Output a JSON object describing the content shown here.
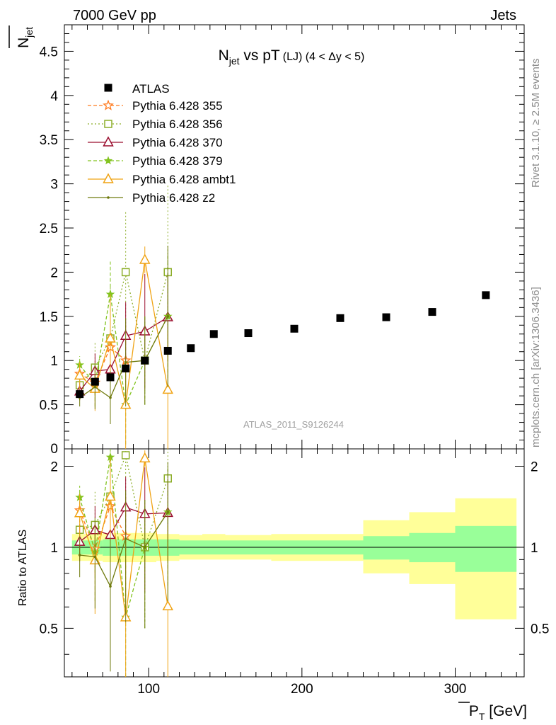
{
  "header": {
    "left": "7000 GeV pp",
    "right": "Jets"
  },
  "side_labels": {
    "rivet": "Rivet 3.1.10, ≥ 2.5M events",
    "mcplots": "mcplots.cern.ch [arXiv:1306.3436]"
  },
  "chart_data": {
    "type": "scatter",
    "title_parts": {
      "main": "N",
      "sub": "jet",
      "rest": " vs pT",
      "small": "(LJ) (4 < Δy < 5)"
    },
    "watermark": "ATLAS_2011_S9126244",
    "xlabel": "P_T [GeV]",
    "xlabel_parts": {
      "p": "P",
      "sub": "T",
      "unit": " [GeV]"
    },
    "ylabel_parts": {
      "n": "N",
      "sub": "jet"
    },
    "ratio_ylabel": "Ratio to ATLAS",
    "xlim": [
      45,
      345
    ],
    "ylim": [
      0,
      4.8
    ],
    "ratio_ylim": [
      0.33,
      2.32
    ],
    "ratio_log": true,
    "x_ticks": [
      100,
      200,
      300
    ],
    "y_ticks": [
      0.5,
      1,
      1.5,
      2,
      2.5,
      3,
      3.5,
      4,
      4.5
    ],
    "y_tick_labels": [
      "0.5",
      "1",
      "1.5",
      "2",
      "2.5",
      "3",
      "3.5",
      "4",
      "4.5"
    ],
    "y_zero_label": "0",
    "ratio_ticks": [
      0.5,
      1,
      2
    ],
    "ratio_tick_labels": [
      "0.5",
      "1",
      "2"
    ],
    "legend_position": "top-left",
    "data": {
      "name": "ATLAS",
      "x": [
        55,
        65,
        75,
        85,
        97.5,
        112.5,
        127.5,
        142.5,
        165,
        195,
        225,
        255,
        285,
        320
      ],
      "y": [
        0.62,
        0.76,
        0.81,
        0.91,
        1.0,
        1.11,
        1.14,
        1.3,
        1.31,
        1.36,
        1.48,
        1.49,
        1.55,
        1.74
      ],
      "bins": [
        [
          50,
          60
        ],
        [
          60,
          70
        ],
        [
          70,
          80
        ],
        [
          80,
          90
        ],
        [
          90,
          105
        ],
        [
          105,
          120
        ],
        [
          120,
          135
        ],
        [
          135,
          150
        ],
        [
          150,
          180
        ],
        [
          180,
          210
        ],
        [
          210,
          240
        ],
        [
          240,
          270
        ],
        [
          270,
          300
        ],
        [
          300,
          340
        ]
      ],
      "band_inner": [
        [
          0.94,
          1.06
        ],
        [
          0.94,
          1.06
        ],
        [
          0.93,
          1.07
        ],
        [
          0.93,
          1.07
        ],
        [
          0.93,
          1.07
        ],
        [
          0.93,
          1.07
        ],
        [
          0.94,
          1.06
        ],
        [
          0.94,
          1.06
        ],
        [
          0.94,
          1.06
        ],
        [
          0.94,
          1.06
        ],
        [
          0.94,
          1.06
        ],
        [
          0.9,
          1.1
        ],
        [
          0.88,
          1.13
        ],
        [
          0.81,
          1.2
        ]
      ],
      "band_outer": [
        [
          0.89,
          1.12
        ],
        [
          0.89,
          1.12
        ],
        [
          0.88,
          1.13
        ],
        [
          0.88,
          1.13
        ],
        [
          0.88,
          1.13
        ],
        [
          0.89,
          1.12
        ],
        [
          0.9,
          1.11
        ],
        [
          0.9,
          1.12
        ],
        [
          0.9,
          1.11
        ],
        [
          0.89,
          1.12
        ],
        [
          0.89,
          1.12
        ],
        [
          0.8,
          1.26
        ],
        [
          0.73,
          1.35
        ],
        [
          0.54,
          1.52
        ]
      ]
    },
    "series": [
      {
        "name": "Pythia 6.428 355",
        "color": "#ff7a1e",
        "dash": "5,3",
        "marker": "star-open",
        "x": [
          55,
          65,
          75,
          85
        ],
        "y": [
          0.85,
          0.75,
          1.15,
          1.0
        ],
        "err": [
          0.12,
          0.15,
          0.35,
          0.4
        ]
      },
      {
        "name": "Pythia 6.428 356",
        "color": "#8cad29",
        "dash": "2,3",
        "marker": "square-open",
        "x": [
          55,
          65,
          75,
          85,
          97.5,
          112.5
        ],
        "y": [
          0.72,
          0.92,
          1.25,
          2.0,
          1.0,
          2.0
        ],
        "err": [
          0.15,
          0.3,
          0.6,
          0.7,
          0.5,
          1.0
        ]
      },
      {
        "name": "Pythia 6.428 370",
        "color": "#9b0e2f",
        "dash": "",
        "marker": "triangle-open",
        "x": [
          55,
          65,
          75,
          85,
          97.5,
          112.5
        ],
        "y": [
          0.65,
          0.88,
          0.9,
          1.28,
          1.33,
          1.49
        ],
        "err": [
          0.1,
          0.2,
          0.35,
          0.38,
          0.65,
          0.5
        ]
      },
      {
        "name": "Pythia 6.428 379",
        "color": "#82c31e",
        "dash": "5,3",
        "marker": "star-filled",
        "x": [
          55,
          65,
          75,
          85,
          97.5,
          112.5
        ],
        "y": [
          0.95,
          0.73,
          1.75,
          0.5,
          1.0,
          1.5
        ],
        "err": [
          0.1,
          0.25,
          0.37,
          0.45,
          0.5,
          0.7
        ]
      },
      {
        "name": "Pythia 6.428 ambt1",
        "color": "#f0a314",
        "dash": "",
        "marker": "triangle-open",
        "x": [
          55,
          65,
          75,
          85,
          97.5,
          112.5
        ],
        "y": [
          0.83,
          0.68,
          1.25,
          0.5,
          2.14,
          0.67
        ],
        "err": [
          0.15,
          0.25,
          0.5,
          0.5,
          0.15,
          0.67
        ]
      },
      {
        "name": "Pythia 6.428 z2",
        "color": "#6f7a0d",
        "dash": "",
        "marker": "dot",
        "x": [
          55,
          65,
          75,
          85,
          97.5,
          112.5
        ],
        "y": [
          0.58,
          0.7,
          0.58,
          0.98,
          1.0,
          1.5
        ],
        "err": [
          0.1,
          0.25,
          0.3,
          0.5,
          0.5,
          0.8
        ]
      }
    ]
  }
}
